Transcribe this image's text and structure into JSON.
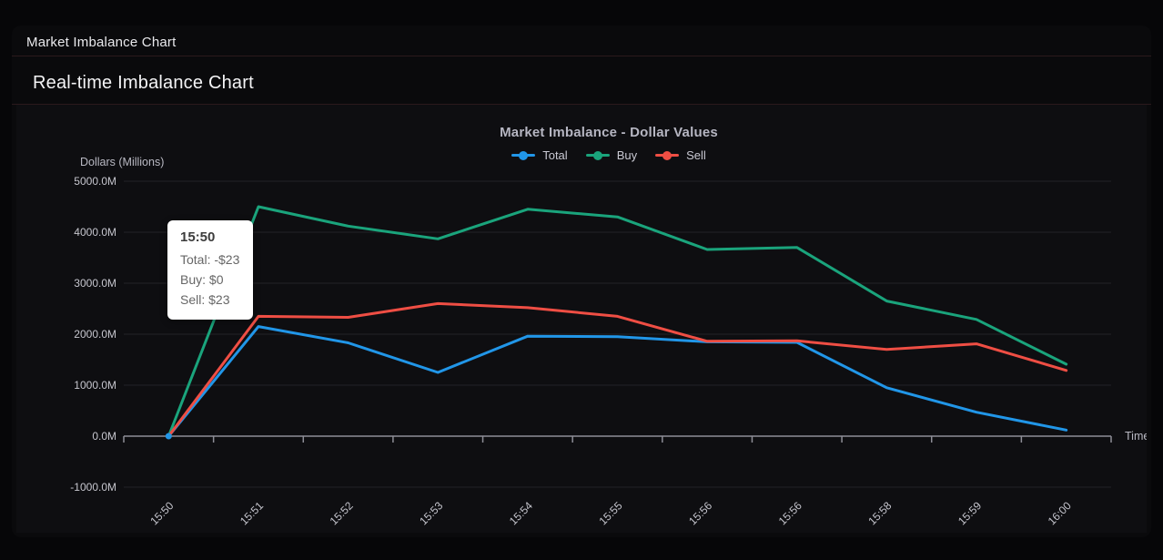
{
  "window": {
    "title": "Market Imbalance Chart"
  },
  "page": {
    "heading": "Real-time Imbalance Chart"
  },
  "chart_data": {
    "type": "line",
    "title": "Market Imbalance - Dollar Values",
    "y_axis_title": "Dollars (Millions)",
    "x_axis_title": "Time",
    "ylim": [
      -1000,
      5000
    ],
    "grid": true,
    "legend_position": "top",
    "units": "USD millions",
    "y_ticks": [
      5000,
      4000,
      3000,
      2000,
      1000,
      0,
      -1000
    ],
    "y_tick_labels": [
      "5000.0M",
      "4000.0M",
      "3000.0M",
      "2000.0M",
      "1000.0M",
      "0.0M",
      "-1000.0M"
    ],
    "categories": [
      "15:50",
      "15:51",
      "15:52",
      "15:53",
      "15:54",
      "15:55",
      "15:56",
      "15:56",
      "15:58",
      "15:59",
      "16:00"
    ],
    "series": [
      {
        "name": "Total",
        "color": "#2196e8",
        "values": [
          0,
          2150,
          1830,
          1250,
          1960,
          1950,
          1850,
          1840,
          950,
          470,
          120
        ]
      },
      {
        "name": "Buy",
        "color": "#1aa47c",
        "values": [
          0,
          4500,
          4120,
          3870,
          4450,
          4300,
          3660,
          3700,
          2650,
          2290,
          1410
        ]
      },
      {
        "name": "Sell",
        "color": "#ef4e44",
        "values": [
          0,
          2350,
          2330,
          2600,
          2520,
          2350,
          1860,
          1870,
          1700,
          1810,
          1290
        ]
      }
    ]
  },
  "tooltip": {
    "title": "15:50",
    "rows": [
      "Total: -$23",
      "Buy: $0",
      "Sell: $23"
    ]
  },
  "colors": {
    "page_bg": "#060608",
    "window_bg": "#0a0a0c",
    "panel_bg": "#0e0e11",
    "divider": "#2b191c",
    "grid": "#232327",
    "axis": "#8e8e97",
    "tick_text": "#c6c6ce",
    "axis_title_text": "#b9b9c3",
    "chart_title_text": "#b6b6c2",
    "tooltip_bg": "#ffffff"
  }
}
